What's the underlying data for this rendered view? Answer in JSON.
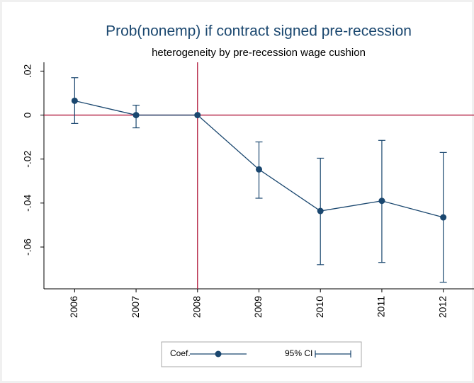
{
  "chart_data": {
    "type": "coefplot",
    "title": "Prob(nonemp) if contract signed pre-recession",
    "subtitle": "heterogeneity by pre-recession wage cushion",
    "x": [
      2006,
      2007,
      2008,
      2009,
      2010,
      2011,
      2012
    ],
    "series": [
      {
        "name": "Coef.",
        "color": "#1a476f",
        "values": [
          0.0065,
          0,
          0,
          -0.0247,
          -0.0436,
          -0.039,
          -0.0465
        ]
      }
    ],
    "ci": {
      "name": "95% CI",
      "color": "#1a476f",
      "lower": [
        -0.0038,
        -0.0058,
        null,
        -0.0378,
        -0.068,
        -0.067,
        -0.076
      ],
      "upper": [
        0.017,
        0.0045,
        null,
        -0.0122,
        -0.0196,
        -0.0115,
        -0.017
      ]
    },
    "xlim": [
      2005.5,
      2012.5
    ],
    "xticks": [
      2006,
      2007,
      2008,
      2009,
      2010,
      2011,
      2012
    ],
    "ylim": [
      -0.079,
      0.024
    ],
    "yticks": [
      {
        "value": 0.02,
        "label": ".02"
      },
      0,
      {
        "value": -0.02,
        "label": "-.02"
      },
      {
        "value": -0.04,
        "label": "-.04"
      },
      {
        "value": -0.06,
        "label": "-.06"
      }
    ],
    "yline": 0,
    "xline": 2008,
    "refline_color": "#b0173a"
  }
}
